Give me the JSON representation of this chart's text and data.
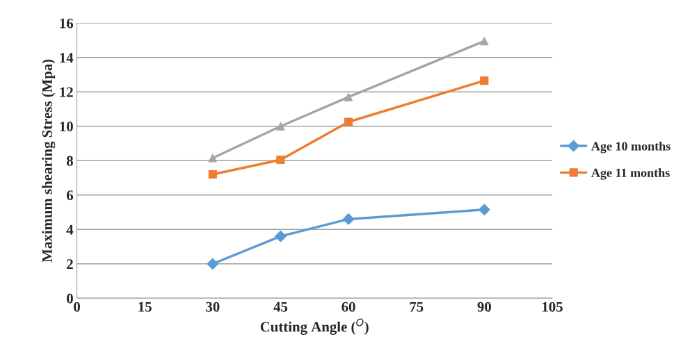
{
  "chart_data": {
    "type": "line",
    "xlabel": "Cutting Angle ($^{O}$)",
    "ylabel": "Maximum shearing Stress (Mpa)",
    "x": [
      30,
      45,
      60,
      90
    ],
    "series": [
      {
        "name": "Age 10 months",
        "color": "#5b9bd5",
        "marker": "diamond",
        "values": [
          2.0,
          3.6,
          4.6,
          5.15
        ]
      },
      {
        "name": "Age 11 months",
        "color": "#ed7d31",
        "marker": "square",
        "values": [
          7.2,
          8.05,
          10.25,
          12.65
        ]
      },
      {
        "color": "#a5a5a5",
        "marker": "triangle",
        "values": [
          8.15,
          10.0,
          11.7,
          14.95
        ]
      }
    ],
    "xlim": [
      0,
      105
    ],
    "xticks": [
      0,
      15,
      30,
      45,
      60,
      75,
      90,
      105
    ],
    "ylim": [
      0,
      16
    ],
    "yticks": [
      0,
      2,
      4,
      6,
      8,
      10,
      12,
      14,
      16
    ],
    "grid": "y",
    "legend": "right",
    "line_style": "solid"
  }
}
